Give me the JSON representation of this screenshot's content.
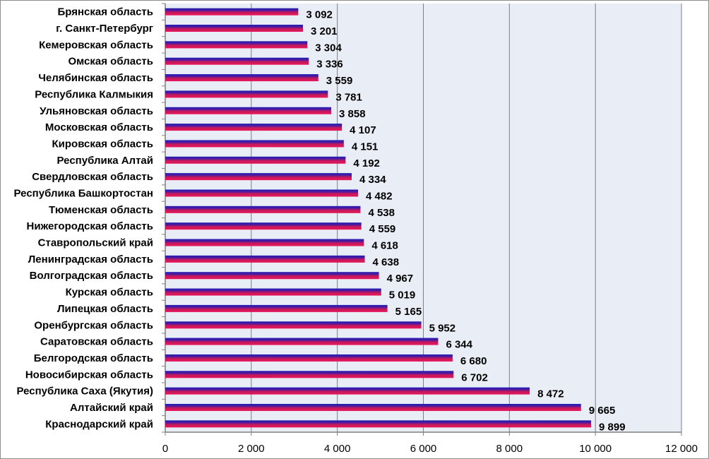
{
  "colors": {
    "plot_bg": "#e9edf6",
    "grid": "#7f7f7f",
    "bar_top": "#1c1cb4",
    "bar_mid": "#c0185e",
    "bar_bottom": "#e8185a",
    "axis": "#7f7f7f"
  },
  "chart_data": {
    "type": "bar",
    "orientation": "horizontal",
    "title": "",
    "xlabel": "",
    "ylabel": "",
    "xlim": [
      0,
      12000
    ],
    "x_ticks": [
      0,
      2000,
      4000,
      6000,
      8000,
      10000,
      12000
    ],
    "x_tick_labels": [
      "0",
      "2 000",
      "4 000",
      "6 000",
      "8 000",
      "10 000",
      "12 000"
    ],
    "grid": "vertical",
    "legend": "none",
    "categories": [
      "Брянская область",
      "г. Санкт-Петербург",
      "Кемеровская область",
      "Омская область",
      "Челябинская область",
      "Республика Калмыкия",
      "Ульяновская  область",
      "Московская область",
      "Кировская область",
      "Республика Алтай",
      "Свердловская область",
      "Республика Башкортостан",
      "Тюменская область",
      "Нижегородская область",
      "Ставропольский край",
      "Ленинградская область",
      "Волгоградская область",
      "Курская область",
      "Липецкая область",
      "Оренбургская область",
      "Саратовская  область",
      "Белгородская область",
      "Новосибирская область",
      "Республика Саха (Якутия)",
      "Алтайский край",
      "Краснодарский край"
    ],
    "values": [
      3092,
      3201,
      3304,
      3336,
      3559,
      3781,
      3858,
      4107,
      4151,
      4192,
      4334,
      4482,
      4538,
      4559,
      4618,
      4638,
      4967,
      5019,
      5165,
      5952,
      6344,
      6680,
      6702,
      8472,
      9665,
      9899
    ],
    "value_labels": [
      "3 092",
      "3 201",
      "3 304",
      "3 336",
      "3 559",
      "3 781",
      "3 858",
      "4 107",
      "4 151",
      "4 192",
      "4 334",
      "4 482",
      "4 538",
      "4 559",
      "4 618",
      "4 638",
      "4 967",
      "5 019",
      "5 165",
      "5 952",
      "6 344",
      "6 680",
      "6 702",
      "8 472",
      "9 665",
      "9 899"
    ]
  }
}
